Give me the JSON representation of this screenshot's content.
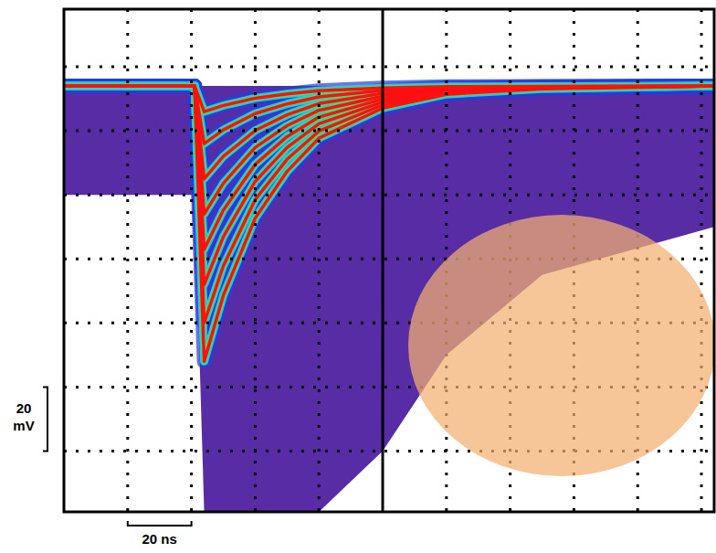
{
  "chart_data": {
    "type": "line",
    "x": [
      0,
      38,
      41,
      44,
      50,
      60,
      70,
      80,
      100,
      120,
      150,
      204
    ],
    "series": [
      {
        "type": "area",
        "color": "#4a1a9c",
        "base": 14,
        "values": [
          -20,
          -20,
          -20,
          -119,
          -119,
          -119,
          -119,
          -119,
          -100,
          -70,
          -45,
          -30
        ]
      },
      {
        "color": "#ff1010",
        "values": [
          14,
          14,
          14,
          -72,
          -51.4,
          -27.3,
          -12.7,
          -2.3,
          7.1,
          11.4,
          13.1,
          14
        ]
      },
      {
        "color": "#ff1010",
        "values": [
          14,
          14,
          14,
          -60,
          -42.2,
          -21.5,
          -8.9,
          -0.1,
          8.1,
          11.8,
          13.3,
          14
        ]
      },
      {
        "color": "#ff1010",
        "values": [
          14,
          14,
          14,
          -48,
          -33.1,
          -15.8,
          -5.2,
          2.2,
          9,
          12.1,
          13.4,
          14
        ]
      },
      {
        "color": "#ff1010",
        "values": [
          14,
          14,
          14,
          -37,
          -24.8,
          -10.5,
          -1.8,
          4.3,
          9.9,
          12.5,
          13.5,
          14
        ]
      },
      {
        "color": "#ff1010",
        "values": [
          14,
          14,
          14,
          -26,
          -16.4,
          -5.2,
          1.6,
          6.4,
          10.8,
          12.8,
          13.6,
          14
        ]
      },
      {
        "color": "#ff1010",
        "values": [
          14,
          14,
          14,
          -15,
          -8,
          0.1,
          5,
          8.5,
          11.7,
          13.1,
          13.7,
          14
        ]
      },
      {
        "color": "#ff1010",
        "values": [
          14,
          14,
          14,
          -4,
          0.3,
          5.4,
          8.4,
          10.6,
          12.6,
          13.5,
          13.8,
          14
        ]
      },
      {
        "color": "#ff1010",
        "values": [
          14,
          14,
          14,
          6,
          7.9,
          10.2,
          11.5,
          12.5,
          13.4,
          13.8,
          13.9,
          14
        ]
      }
    ],
    "xlim": [
      0,
      204
    ],
    "ylim": [
      -119,
      38
    ],
    "xticks": [
      20,
      40,
      60,
      80,
      100,
      120,
      140,
      160,
      180,
      200
    ],
    "yticks": [
      20,
      0,
      -20,
      -40,
      -60,
      -80,
      -100
    ],
    "grid": true,
    "tick_labels": false,
    "x_scale_bar": {
      "label": "20 ns",
      "value": 20
    },
    "y_scale_bar": {
      "label": "20 mV",
      "value": 20
    }
  }
}
